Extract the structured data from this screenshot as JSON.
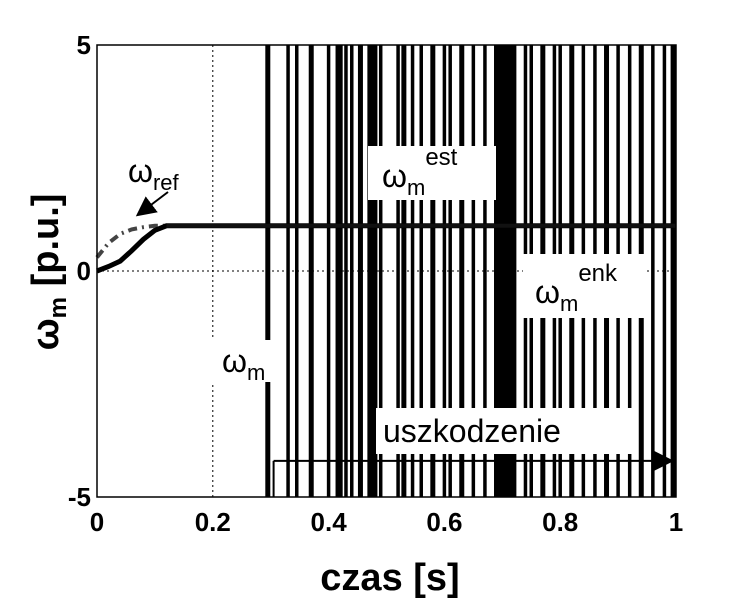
{
  "chart_data": {
    "type": "line",
    "xlabel": "czas [s]",
    "ylabel": {
      "base": "ω",
      "sub": "m",
      "rest": " [p.u.]"
    },
    "xlim": [
      0,
      1
    ],
    "ylim": [
      -5,
      5
    ],
    "x_ticks": [
      {
        "value": 0,
        "label": "0"
      },
      {
        "value": 0.2,
        "label": "0.2"
      },
      {
        "value": 0.4,
        "label": "0.4"
      },
      {
        "value": 0.6,
        "label": "0.6"
      },
      {
        "value": 0.8,
        "label": "0.8"
      },
      {
        "value": 1,
        "label": "1"
      }
    ],
    "y_ticks": [
      {
        "value": 5,
        "label": "5"
      },
      {
        "value": 0,
        "label": "0"
      },
      {
        "value": -5,
        "label": "-5"
      }
    ],
    "grid": true,
    "series": [
      {
        "name": "ω_ref",
        "style": "dash-dot",
        "color": "#444444",
        "x": [
          0,
          0.02,
          0.04,
          0.06,
          0.08,
          0.1,
          0.12,
          1.0
        ],
        "y": [
          0.3,
          0.62,
          0.82,
          0.92,
          0.97,
          1.0,
          1.0,
          1.0
        ]
      },
      {
        "name": "ω_m",
        "style": "solid",
        "color": "#000000",
        "x": [
          0,
          0.02,
          0.04,
          0.06,
          0.08,
          0.1,
          0.12,
          1.0
        ],
        "y": [
          0.0,
          0.1,
          0.22,
          0.45,
          0.7,
          0.9,
          1.0,
          1.0
        ]
      },
      {
        "name": "ω_m_est",
        "style": "solid",
        "color": "#111111",
        "x": [
          0.12,
          1.0
        ],
        "y": [
          1.0,
          1.0
        ]
      }
    ],
    "encoder_spikes": {
      "name": "ω_m_enk",
      "color": "#000000",
      "x": [
        0.295,
        0.33,
        0.345,
        0.37,
        0.4,
        0.415,
        0.42,
        0.43,
        0.44,
        0.455,
        0.47,
        0.475,
        0.48,
        0.49,
        0.52,
        0.53,
        0.545,
        0.56,
        0.58,
        0.6,
        0.61,
        0.63,
        0.65,
        0.67,
        0.69,
        0.7,
        0.71,
        0.72,
        0.74,
        0.75,
        0.77,
        0.79,
        0.8,
        0.82,
        0.84,
        0.86,
        0.88,
        0.9,
        0.92,
        0.94,
        0.96,
        0.98,
        0.995
      ],
      "dense_band": {
        "from": 0.69,
        "to": 0.72
      }
    },
    "annotations": [
      {
        "id": "ref",
        "base": "ω",
        "sub": "ref",
        "sup": ""
      },
      {
        "id": "est",
        "base": "ω",
        "sub": "m",
        "sup": "est"
      },
      {
        "id": "enk",
        "base": "ω",
        "sub": "m",
        "sup": "enk"
      },
      {
        "id": "wm",
        "base": "ω",
        "sub": "m",
        "sup": ""
      },
      {
        "id": "fault",
        "text": "uszkodzenie"
      }
    ],
    "fault_marker": {
      "from": 0.305,
      "to": 1.0,
      "y": -4.2
    }
  }
}
